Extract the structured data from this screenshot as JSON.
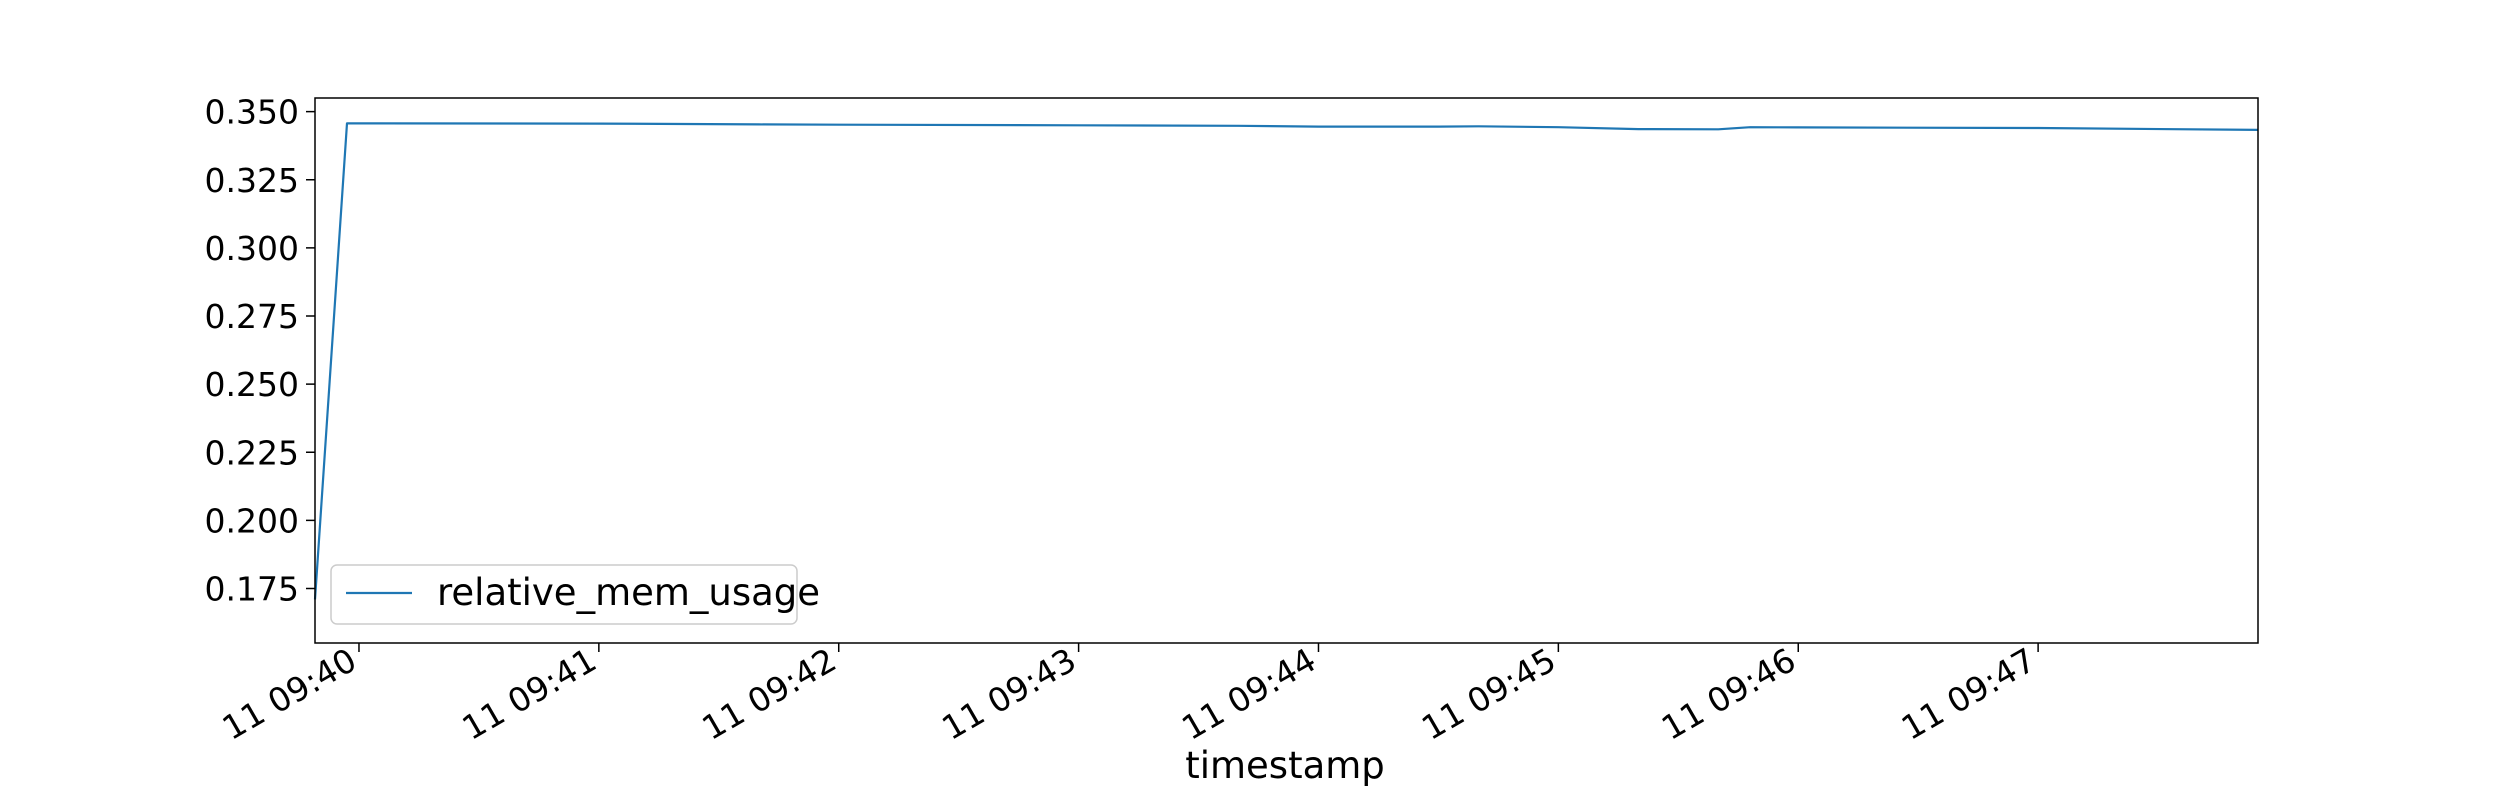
{
  "chart_data": {
    "type": "line",
    "title": "",
    "xlabel": "timestamp",
    "ylabel": "",
    "x_tick_labels": [
      "11 09:40",
      "11 09:41",
      "11 09:42",
      "11 09:43",
      "11 09:44",
      "11 09:45",
      "11 09:46",
      "11 09:47"
    ],
    "y_tick_labels": [
      "0.175",
      "0.200",
      "0.225",
      "0.250",
      "0.275",
      "0.300",
      "0.325",
      "0.350"
    ],
    "xlim": [
      "09:39:49",
      "09:47:55"
    ],
    "ylim": [
      0.155,
      0.355
    ],
    "grid": false,
    "legend_position": "lower-left",
    "series": [
      {
        "name": "relative_mem_usage",
        "color": "#1f77b4",
        "x": [
          "09:39:49",
          "09:39:57",
          "09:41:00",
          "09:41:40",
          "09:42:00",
          "09:43:00",
          "09:43:40",
          "09:44:00",
          "09:44:30",
          "09:44:40",
          "09:45:00",
          "09:45:20",
          "09:45:40",
          "09:45:48",
          "09:46:00",
          "09:47:00",
          "09:47:55"
        ],
        "y": [
          0.171,
          0.3457,
          0.3456,
          0.3453,
          0.3452,
          0.345,
          0.3448,
          0.3445,
          0.3445,
          0.3446,
          0.3443,
          0.3436,
          0.3435,
          0.3443,
          0.3442,
          0.344,
          0.3433
        ]
      }
    ]
  }
}
